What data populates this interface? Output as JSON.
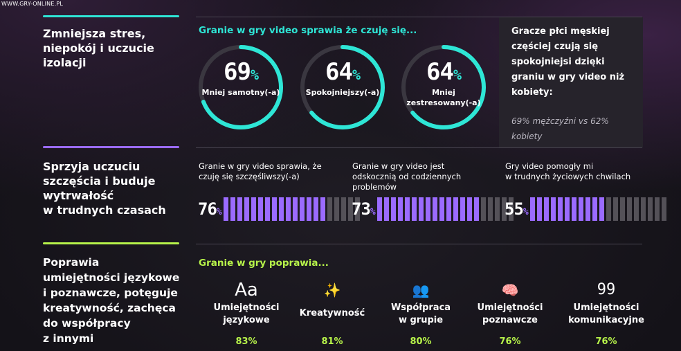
{
  "watermark": "WWW.GRY-ONLINE.PL",
  "colors": {
    "teal": "#2ee6d6",
    "purple": "#9b6bff",
    "lime": "#b7f34a",
    "bar_off": "#545158"
  },
  "section1": {
    "heading": [
      "Zmniejsza stres,",
      "niepokój i uczucie",
      "izolacji"
    ],
    "subtitle": "Granie w gry video sprawia że czuję się...",
    "rings": [
      {
        "value": 69,
        "pct": "%",
        "label": [
          "Mniej samotny(-a)"
        ]
      },
      {
        "value": 64,
        "pct": "%",
        "label": [
          "Spokojniejszy(-a)"
        ]
      },
      {
        "value": 64,
        "pct": "%",
        "label": [
          "Mniej",
          "zestresowany(-a)"
        ]
      }
    ],
    "box": {
      "title": [
        "Gracze płci męskiej",
        "częściej czują się",
        "spokojniejsi dzięki",
        "graniu w gry video niż",
        "kobiety:"
      ],
      "note": [
        "69% mężczyźni vs 62%",
        "kobiety"
      ]
    }
  },
  "section2": {
    "heading": [
      "Sprzyja uczuciu",
      "szczęścia i buduje",
      "wytrwałość",
      "w trudnych czasach"
    ],
    "stats": [
      {
        "desc": [
          "Granie w gry video sprawia, że",
          "czuję się szczęśliwszy(-a)"
        ],
        "value": 76,
        "pct": "%",
        "on_bars": 15,
        "total_bars": 20
      },
      {
        "desc": [
          "Granie w gry video jest",
          "odskocznią od codziennych",
          "problemów"
        ],
        "value": 73,
        "pct": "%",
        "on_bars": 15,
        "total_bars": 20
      },
      {
        "desc": [
          "Gry video pomogły mi",
          "w trudnych życiowych chwilach"
        ],
        "value": 55,
        "pct": "%",
        "on_bars": 11,
        "total_bars": 20
      }
    ]
  },
  "section3": {
    "heading": [
      "Poprawia",
      "umiejętności językowe",
      "i poznawcze, potęguje",
      "kreatywność, zachęca",
      "do współpracy",
      "z innymi"
    ],
    "subtitle": "Granie w gry poprawia...",
    "skills": [
      {
        "icon": "text-aa-icon",
        "glyph": "Aa",
        "name": [
          "Umiejętności",
          "językowe"
        ],
        "value": "83%"
      },
      {
        "icon": "magic-wand-icon",
        "glyph": "✨",
        "name": [
          "Kreatywność"
        ],
        "value": "81%"
      },
      {
        "icon": "team-icon",
        "glyph": "👥",
        "name": [
          "Współpraca",
          "w grupie"
        ],
        "value": "80%"
      },
      {
        "icon": "brain-head-icon",
        "glyph": "🧠",
        "name": [
          "Umiejętności",
          "poznawcze"
        ],
        "value": "76%"
      },
      {
        "icon": "quote-icon",
        "glyph": "99",
        "name": [
          "Umiejętności",
          "komunikacyjne"
        ],
        "value": "76%"
      }
    ]
  }
}
